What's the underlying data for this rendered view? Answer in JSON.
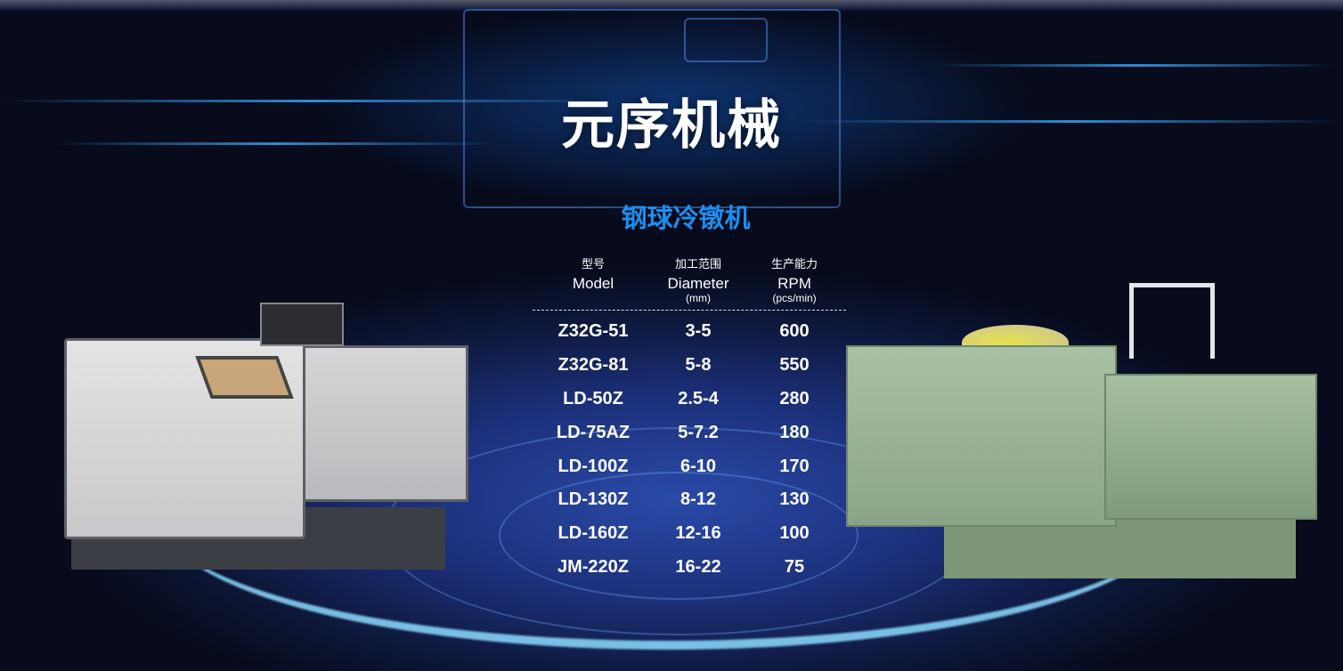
{
  "header": {
    "title": "元序机械"
  },
  "product": {
    "category": "钢球冷镦机",
    "columns": [
      {
        "cn": "型号",
        "en": "Model",
        "unit": ""
      },
      {
        "cn": "加工范围",
        "en": "Diameter",
        "unit": "(mm)"
      },
      {
        "cn": "生产能力",
        "en": "RPM",
        "unit": "(pcs/min)"
      }
    ],
    "rows": [
      [
        "Z32G-51",
        "3-5",
        "600"
      ],
      [
        "Z32G-81",
        "5-8",
        "550"
      ],
      [
        "LD-50Z",
        "2.5-4",
        "280"
      ],
      [
        "LD-75AZ",
        "5-7.2",
        "180"
      ],
      [
        "LD-100Z",
        "6-10",
        "170"
      ],
      [
        "LD-130Z",
        "8-12",
        "130"
      ],
      [
        "LD-160Z",
        "12-16",
        "100"
      ],
      [
        "JM-220Z",
        "16-22",
        "75"
      ]
    ]
  },
  "colors": {
    "accent": "#1e8ef0",
    "background": "#0c1636"
  }
}
